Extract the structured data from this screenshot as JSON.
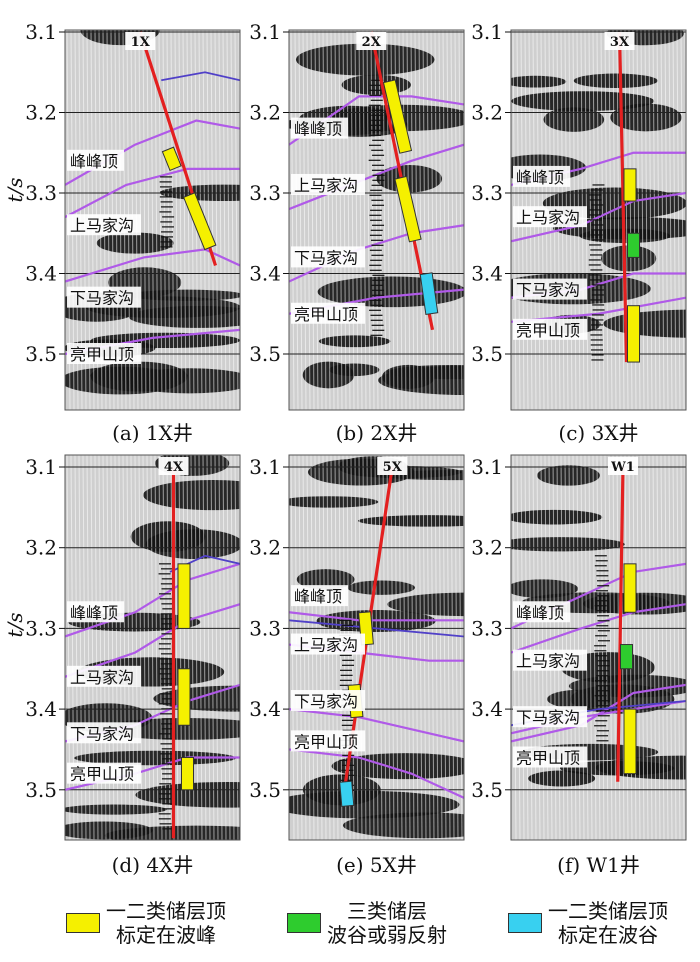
{
  "panels": [
    {
      "well": "1X",
      "caption": "(a) 1X井",
      "labels": [
        "峰峰顶",
        "上马家沟",
        "下马家沟",
        "亮甲山顶"
      ]
    },
    {
      "well": "2X",
      "caption": "(b) 2X井",
      "labels": [
        "峰峰顶",
        "上马家沟",
        "下马家沟",
        "亮甲山顶"
      ]
    },
    {
      "well": "3X",
      "caption": "(c) 3X井",
      "labels": [
        "峰峰顶",
        "上马家沟",
        "下马家沟",
        "亮甲山顶"
      ]
    },
    {
      "well": "4X",
      "caption": "(d) 4X井",
      "labels": [
        "峰峰顶",
        "上马家沟",
        "下马家沟",
        "亮甲山顶"
      ]
    },
    {
      "well": "5X",
      "caption": "(e) 5X井",
      "labels": [
        "峰峰顶",
        "上马家沟",
        "下马家沟",
        "亮甲山顶"
      ]
    },
    {
      "well": "W1",
      "caption": "(f) W1井",
      "labels": [
        "峰峰顶",
        "上马家沟",
        "下马家沟",
        "亮甲山顶"
      ]
    }
  ],
  "axis": {
    "ylabel": "t/s",
    "ticks": [
      "3.1",
      "3.2",
      "3.3",
      "3.4",
      "3.5"
    ],
    "tick_values": [
      3.1,
      3.2,
      3.3,
      3.4,
      3.5
    ]
  },
  "colors": {
    "well_path": "#e32020",
    "horizon": "#b05ae8",
    "horizon_dark": "#5040c8",
    "peak_reservoir": "#f5f000",
    "weak_reservoir": "#2ecc2e",
    "trough_reservoir": "#38d0f0"
  },
  "legend": [
    {
      "color_key": "peak_reservoir",
      "lines": [
        "一二类储层顶",
        "标定在波峰"
      ]
    },
    {
      "color_key": "weak_reservoir",
      "lines": [
        "三类储层",
        "波谷或弱反射"
      ]
    },
    {
      "color_key": "trough_reservoir",
      "lines": [
        "一二类储层顶",
        "标定在波谷"
      ]
    }
  ]
}
